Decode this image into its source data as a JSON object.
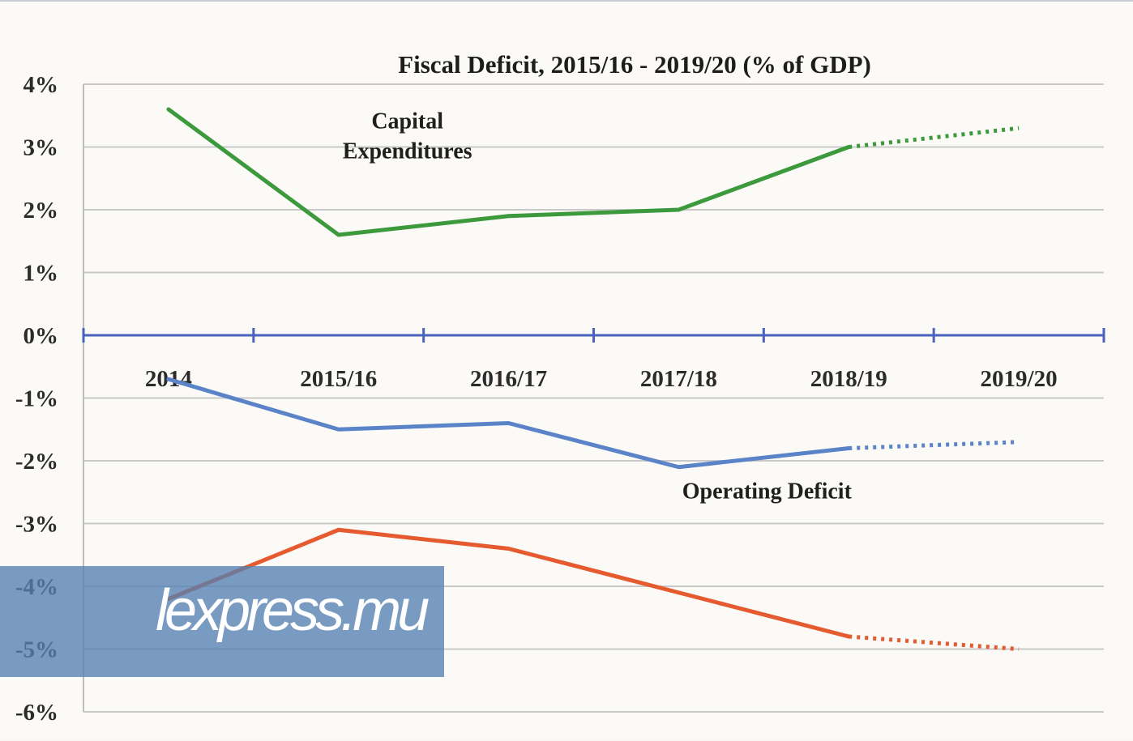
{
  "chart_data": {
    "type": "line",
    "title": "Fiscal Deficit,  2015/16 - 2019/20  (% of GDP)",
    "xlabel": "",
    "ylabel": "",
    "categories": [
      "2014",
      "2015/16",
      "2016/17",
      "2017/18",
      "2018/19",
      "2019/20"
    ],
    "y_ticks": [
      "4%",
      "3%",
      "2%",
      "1%",
      "0%",
      "-1%",
      "-2%",
      "-3%",
      "-4%",
      "-5%",
      "-6%"
    ],
    "ylim": [
      -6,
      4
    ],
    "grid": true,
    "legend": "none",
    "series": [
      {
        "name": "Capital Expenditures",
        "label_lines": [
          "Capital",
          "Expenditures"
        ],
        "color": "#3c9a3c",
        "values": [
          3.6,
          1.6,
          1.9,
          2.0,
          3.0,
          3.3
        ],
        "projected_from_index": 4
      },
      {
        "name": "Operating Deficit",
        "color": "#5b84c8",
        "values": [
          -0.7,
          -1.5,
          -1.4,
          -2.1,
          -1.8,
          -1.7
        ],
        "projected_from_index": 4
      },
      {
        "name": "",
        "color": "#e55a2f",
        "values": [
          -4.2,
          -3.1,
          -3.4,
          -4.1,
          -4.8,
          -5.0
        ],
        "projected_from_index": 4
      }
    ]
  },
  "watermark": {
    "text": "lexpress.mu",
    "color": "#5680b2"
  }
}
